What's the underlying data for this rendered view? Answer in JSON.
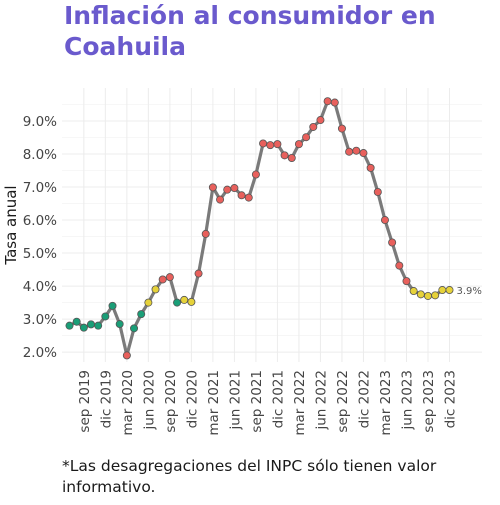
{
  "title": "Inflación al consumidor en Coahuila",
  "note": "*Las desagregaciones del INPC sólo tienen valor informativo.",
  "colors": {
    "title": "#6a5acd",
    "line": "#7a7a7a",
    "low": "#1a9e77",
    "mid": "#e6d23a",
    "high": "#e8605c",
    "grid": "#ececec"
  },
  "chart_data": {
    "type": "line",
    "title": "Inflación al consumidor en Coahuila",
    "ylabel": "Tasa anual",
    "xlabel": "",
    "ylim": [
      1.7,
      10.0
    ],
    "yticks": [
      2.0,
      3.0,
      4.0,
      5.0,
      6.0,
      7.0,
      8.0,
      9.0
    ],
    "ytick_labels": [
      "2.0%",
      "3.0%",
      "4.0%",
      "5.0%",
      "6.0%",
      "7.0%",
      "8.0%",
      "9.0%"
    ],
    "x": [
      "2019-07",
      "2019-08",
      "2019-09",
      "2019-10",
      "2019-11",
      "2019-12",
      "2020-01",
      "2020-02",
      "2020-03",
      "2020-04",
      "2020-05",
      "2020-06",
      "2020-07",
      "2020-08",
      "2020-09",
      "2020-10",
      "2020-11",
      "2020-12",
      "2021-01",
      "2021-02",
      "2021-03",
      "2021-04",
      "2021-05",
      "2021-06",
      "2021-07",
      "2021-08",
      "2021-09",
      "2021-10",
      "2021-11",
      "2021-12",
      "2022-01",
      "2022-02",
      "2022-03",
      "2022-04",
      "2022-05",
      "2022-06",
      "2022-07",
      "2022-08",
      "2022-09",
      "2022-10",
      "2022-11",
      "2022-12",
      "2023-01",
      "2023-02",
      "2023-03",
      "2023-04",
      "2023-05",
      "2023-06",
      "2023-07",
      "2023-08",
      "2023-09",
      "2023-10",
      "2023-11",
      "2023-12"
    ],
    "values": [
      2.8,
      2.92,
      2.74,
      2.84,
      2.8,
      3.08,
      3.4,
      2.85,
      1.9,
      2.72,
      3.15,
      3.5,
      3.9,
      4.2,
      4.27,
      3.5,
      3.58,
      3.52,
      4.38,
      5.58,
      6.99,
      6.62,
      6.92,
      6.97,
      6.75,
      6.68,
      7.38,
      8.32,
      8.27,
      8.3,
      7.96,
      7.88,
      8.3,
      8.51,
      8.82,
      9.03,
      9.6,
      9.56,
      8.77,
      8.07,
      8.1,
      8.03,
      7.58,
      6.85,
      6.0,
      5.32,
      4.62,
      4.15,
      3.85,
      3.75,
      3.7,
      3.72,
      3.88,
      3.88
    ],
    "categories": [
      "low",
      "low",
      "low",
      "low",
      "low",
      "low",
      "low",
      "low",
      "high",
      "low",
      "low",
      "mid",
      "mid",
      "high",
      "high",
      "low",
      "mid",
      "mid",
      "high",
      "high",
      "high",
      "high",
      "high",
      "high",
      "high",
      "high",
      "high",
      "high",
      "high",
      "high",
      "high",
      "high",
      "high",
      "high",
      "high",
      "high",
      "high",
      "high",
      "high",
      "high",
      "high",
      "high",
      "high",
      "high",
      "high",
      "high",
      "high",
      "high",
      "mid",
      "mid",
      "mid",
      "mid",
      "mid",
      "mid"
    ],
    "xtick_indices": [
      2,
      5,
      8,
      11,
      14,
      17,
      20,
      23,
      26,
      29,
      32,
      35,
      38,
      41,
      44,
      47,
      50,
      53
    ],
    "xtick_labels": [
      "sep 2019",
      "dic 2019",
      "mar 2020",
      "jun 2020",
      "sep 2020",
      "dic 2020",
      "mar 2021",
      "jun 2021",
      "sep 2021",
      "dic 2021",
      "mar 2022",
      "jun 2022",
      "sep 2022",
      "dic 2022",
      "mar 2023",
      "jun 2023",
      "sep 2023",
      "dic 2023"
    ],
    "last_label": "3.9%",
    "grid": true
  }
}
